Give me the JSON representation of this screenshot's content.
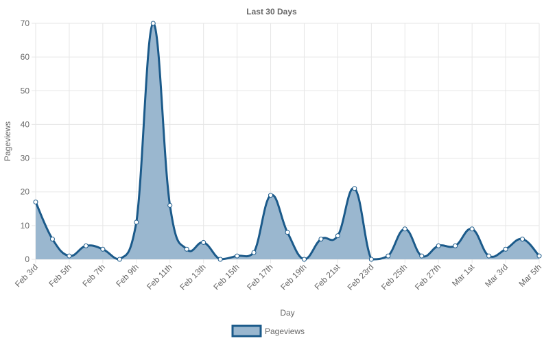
{
  "chart_data": {
    "type": "area",
    "title": "Last 30 Days",
    "xlabel": "Day",
    "ylabel": "Pageviews",
    "ylim": [
      0,
      70
    ],
    "yticks": [
      0,
      10,
      20,
      30,
      40,
      50,
      60,
      70
    ],
    "grid": true,
    "legend_position": "bottom",
    "x": [
      "Feb 3rd",
      "Feb 4th",
      "Feb 5th",
      "Feb 6th",
      "Feb 7th",
      "Feb 8th",
      "Feb 9th",
      "Feb 10th",
      "Feb 11th",
      "Feb 12th",
      "Feb 13th",
      "Feb 14th",
      "Feb 15th",
      "Feb 16th",
      "Feb 17th",
      "Feb 18th",
      "Feb 19th",
      "Feb 20th",
      "Feb 21st",
      "Feb 22nd",
      "Feb 23rd",
      "Feb 24th",
      "Feb 25th",
      "Feb 26th",
      "Feb 27th",
      "Feb 28th",
      "Mar 1st",
      "Mar 2nd",
      "Mar 3rd",
      "Mar 4th",
      "Mar 5th"
    ],
    "x_tick_labels": [
      "Feb 3rd",
      "Feb 5th",
      "Feb 7th",
      "Feb 9th",
      "Feb 11th",
      "Feb 13th",
      "Feb 15th",
      "Feb 17th",
      "Feb 19th",
      "Feb 21st",
      "Feb 23rd",
      "Feb 25th",
      "Feb 27th",
      "Mar 1st",
      "Mar 3rd",
      "Mar 5th"
    ],
    "series": [
      {
        "name": "Pageviews",
        "values": [
          17,
          6,
          1,
          4,
          3,
          0,
          11,
          70,
          16,
          3,
          5,
          0,
          1,
          2,
          19,
          8,
          0,
          6,
          7,
          21,
          0,
          1,
          9,
          1,
          4,
          4,
          9,
          1,
          3,
          6,
          1
        ]
      }
    ],
    "colors": {
      "line": "#1b5a8a",
      "fill": "#9ab7cf",
      "grid": "#e6e6e6",
      "point_fill": "#ffffff"
    }
  }
}
